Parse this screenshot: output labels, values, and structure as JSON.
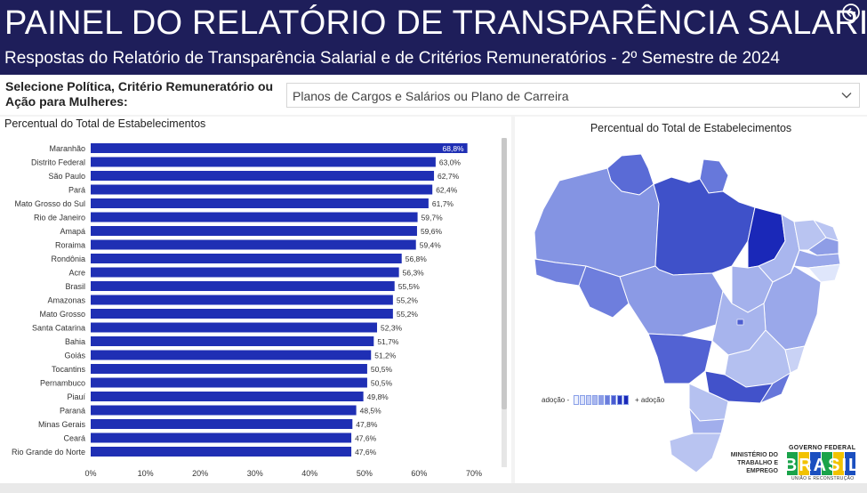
{
  "header": {
    "title": "PAINEL DO RELATÓRIO DE TRANSPARÊNCIA SALARIAL",
    "subtitle": "Respostas do Relatório de Transparência Salarial e de Critérios Remuneratórios - 2º Semestre de 2024",
    "back_icon": "arrow-left-circle-icon"
  },
  "filter": {
    "label": "Selecione Política, Critério Remuneratório ou Ação para Mulheres:",
    "selected": "Planos de Cargos e Salários ou Plano de Carreira",
    "chevron_icon": "chevron-down-icon"
  },
  "map": {
    "title": "Percentual do Total de Estabelecimentos",
    "legend_min": "adoção -",
    "legend_max": "+ adoção",
    "colors": {
      "low": "#dfe6fb",
      "high": "#1a28b8"
    }
  },
  "footer_logo": {
    "ministry": "MINISTÉRIO DO TRABALHO E EMPREGO",
    "gov_label": "GOVERNO FEDERAL",
    "gov_word": "BRASIL",
    "gov_sub": "UNIÃO E RECONSTRUÇÃO"
  },
  "chart_data": {
    "type": "bar",
    "orientation": "horizontal",
    "title": "Percentual do Total de Estabelecimentos",
    "bar_color": "#1f2fb4",
    "categories": [
      "Maranhão",
      "Distrito Federal",
      "São Paulo",
      "Pará",
      "Mato Grosso do Sul",
      "Rio de Janeiro",
      "Amapá",
      "Roraima",
      "Rondônia",
      "Acre",
      "Brasil",
      "Amazonas",
      "Mato Grosso",
      "Santa Catarina",
      "Bahia",
      "Goiás",
      "Tocantins",
      "Pernambuco",
      "Piauí",
      "Paraná",
      "Minas Gerais",
      "Ceará",
      "Rio Grande do Norte"
    ],
    "values": [
      68.8,
      63.0,
      62.7,
      62.4,
      61.7,
      59.7,
      59.6,
      59.4,
      56.8,
      56.3,
      55.5,
      55.2,
      55.2,
      52.3,
      51.7,
      51.2,
      50.5,
      50.5,
      49.8,
      48.5,
      47.8,
      47.6,
      47.6
    ],
    "data_labels": [
      "68,8%",
      "63,0%",
      "62,7%",
      "62,4%",
      "61,7%",
      "59,7%",
      "59,6%",
      "59,4%",
      "56,8%",
      "56,3%",
      "55,5%",
      "55,2%",
      "55,2%",
      "52,3%",
      "51,7%",
      "51,2%",
      "50,5%",
      "50,5%",
      "49,8%",
      "48,5%",
      "47,8%",
      "47,6%",
      "47,6%"
    ],
    "xlim": [
      0,
      70
    ],
    "xticks": [
      "0%",
      "10%",
      "20%",
      "30%",
      "40%",
      "50%",
      "60%",
      "70%"
    ],
    "xlabel": "",
    "ylabel": "",
    "grid": false
  }
}
